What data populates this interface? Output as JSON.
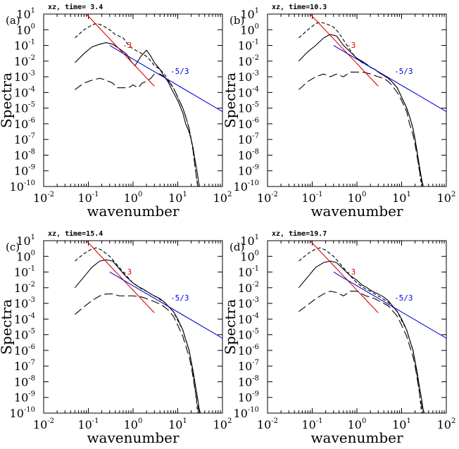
{
  "chart_data": [
    {
      "type": "line",
      "panel_label": "(a)",
      "title": "xz, time= 3.4",
      "xlabel": "wavenumber",
      "ylabel": "Spectra",
      "x_scale": "log",
      "y_scale": "log",
      "xlim": [
        0.01,
        100
      ],
      "ylim": [
        1e-10,
        10
      ],
      "x_tick_labels": [
        "10^-2",
        "10^-1",
        "10^0",
        "10^1",
        "10^2"
      ],
      "y_tick_labels": [
        "10^-10",
        "10^-9",
        "10^-8",
        "10^-7",
        "10^-6",
        "10^-5",
        "10^-4",
        "10^-3",
        "10^-2",
        "10^-1",
        "10^0",
        "10^1"
      ],
      "series": [
        {
          "style": "solid",
          "x": [
            0.05,
            0.08,
            0.12,
            0.18,
            0.25,
            0.35,
            0.5,
            0.7,
            0.9,
            1.1,
            1.5,
            2.0,
            2.5,
            3.0,
            4.0,
            5.0,
            6.0,
            8.0,
            10,
            13,
            15,
            18,
            20,
            22,
            25,
            28,
            30
          ],
          "y": [
            0.008,
            0.03,
            0.08,
            0.12,
            0.15,
            0.12,
            0.06,
            0.03,
            0.01,
            0.005,
            0.02,
            0.05,
            0.02,
            0.008,
            0.003,
            0.001,
            0.0005,
            0.0001,
            3e-05,
            5e-06,
            1e-06,
            3e-07,
            1e-07,
            3e-08,
            3e-09,
            5e-10,
            1e-10
          ]
        },
        {
          "style": "dashed",
          "x": [
            0.05,
            0.08,
            0.12,
            0.15,
            0.2,
            0.3,
            0.4,
            0.6,
            0.8,
            1.0,
            1.3,
            1.6,
            2.0,
            2.5,
            3.0,
            4.0,
            5.0,
            6.0,
            8.0,
            10,
            13,
            15,
            18,
            20,
            22,
            25,
            28,
            30
          ],
          "y": [
            0.3,
            1.0,
            2.0,
            2.5,
            2.0,
            1.0,
            0.5,
            0.3,
            0.1,
            0.06,
            0.04,
            0.03,
            0.02,
            0.01,
            0.005,
            0.003,
            0.0015,
            0.0007,
            0.0002,
            5e-05,
            1e-05,
            3e-06,
            5e-07,
            1e-07,
            2e-08,
            1e-09,
            1e-10,
            1e-10
          ]
        },
        {
          "style": "longdash",
          "x": [
            0.05,
            0.08,
            0.12,
            0.18,
            0.25,
            0.35,
            0.45,
            0.6,
            0.8,
            1.0,
            1.3,
            1.6,
            2.0,
            2.5,
            3.0,
            4.0,
            5.0,
            6.0,
            8.0,
            10,
            13,
            15,
            18,
            20,
            22,
            25,
            28
          ],
          "y": [
            0.00015,
            0.0004,
            0.0006,
            0.0008,
            0.0006,
            0.0004,
            0.0002,
            0.0002,
            0.0002,
            0.0003,
            0.0002,
            0.0004,
            0.0005,
            0.0008,
            0.0015,
            0.0015,
            0.001,
            0.0006,
            0.0002,
            5e-05,
            1e-05,
            3e-06,
            5e-07,
            1e-07,
            2e-08,
            1e-09,
            1e-10
          ]
        }
      ],
      "reference_lines": [
        {
          "label": "-3",
          "color": "#dd0000",
          "x": [
            0.09,
            3.0
          ],
          "y": [
            10,
            0.00025
          ]
        },
        {
          "label": "-5/3",
          "color": "#0000dd",
          "x": [
            0.3,
            100
          ],
          "y": [
            0.1,
            6e-06
          ]
        }
      ]
    },
    {
      "type": "line",
      "panel_label": "(b)",
      "title": "xz, time=10.3",
      "xlabel": "wavenumber",
      "ylabel": "Spectra",
      "x_scale": "log",
      "y_scale": "log",
      "xlim": [
        0.01,
        100
      ],
      "ylim": [
        1e-10,
        10
      ],
      "x_tick_labels": [
        "10^-2",
        "10^-1",
        "10^0",
        "10^1",
        "10^2"
      ],
      "y_tick_labels": [
        "10^-10",
        "10^-9",
        "10^-8",
        "10^-7",
        "10^-6",
        "10^-5",
        "10^-4",
        "10^-3",
        "10^-2",
        "10^-1",
        "10^0",
        "10^1"
      ],
      "series": [
        {
          "style": "solid",
          "x": [
            0.05,
            0.08,
            0.12,
            0.18,
            0.25,
            0.35,
            0.5,
            0.7,
            1.0,
            1.3,
            1.7,
            2.0,
            2.5,
            3.0,
            4.0,
            5.0,
            6.0,
            8.0,
            10,
            13,
            15,
            18,
            20,
            22,
            25,
            28,
            30
          ],
          "y": [
            0.01,
            0.04,
            0.1,
            0.3,
            0.5,
            0.4,
            0.1,
            0.04,
            0.015,
            0.01,
            0.006,
            0.004,
            0.003,
            0.002,
            0.0012,
            0.0008,
            0.0005,
            0.0002,
            5e-05,
            1e-05,
            3e-06,
            5e-07,
            1e-07,
            2e-08,
            2e-09,
            3e-10,
            1e-10
          ]
        },
        {
          "style": "dashed",
          "x": [
            0.05,
            0.08,
            0.12,
            0.15,
            0.2,
            0.3,
            0.4,
            0.6,
            0.8,
            1.0,
            1.3,
            1.6,
            2.0,
            2.5,
            3.0,
            4.0,
            5.0,
            6.0,
            8.0,
            10,
            13,
            15,
            18,
            20,
            22,
            25,
            28,
            30
          ],
          "y": [
            0.3,
            1.0,
            2.5,
            3.0,
            2.5,
            1.5,
            0.6,
            0.1,
            0.03,
            0.015,
            0.008,
            0.006,
            0.004,
            0.003,
            0.002,
            0.0012,
            0.0008,
            0.0005,
            0.0002,
            5e-05,
            1e-05,
            3e-06,
            5e-07,
            1e-07,
            2e-08,
            1e-09,
            1e-10,
            1e-10
          ]
        },
        {
          "style": "longdash",
          "x": [
            0.05,
            0.08,
            0.12,
            0.18,
            0.25,
            0.35,
            0.5,
            0.7,
            1.0,
            1.3,
            1.6,
            2.0,
            2.5,
            3.0,
            4.0,
            5.0,
            6.0,
            8.0,
            10,
            13,
            15,
            18,
            20,
            22,
            25,
            28,
            30
          ],
          "y": [
            0.00015,
            0.0005,
            0.001,
            0.0015,
            0.001,
            0.0015,
            0.001,
            0.002,
            0.002,
            0.002,
            0.0018,
            0.0015,
            0.0012,
            0.001,
            0.0008,
            0.0005,
            0.0003,
            0.0001,
            3e-05,
            6e-06,
            1e-06,
            2e-07,
            5e-08,
            1e-08,
            1e-09,
            2e-10,
            1e-10
          ]
        }
      ],
      "reference_lines": [
        {
          "label": "-3",
          "color": "#dd0000",
          "x": [
            0.09,
            3.0
          ],
          "y": [
            10,
            0.00025
          ]
        },
        {
          "label": "-5/3",
          "color": "#0000dd",
          "x": [
            0.3,
            100
          ],
          "y": [
            0.1,
            6e-06
          ]
        }
      ]
    },
    {
      "type": "line",
      "panel_label": "(c)",
      "title": "xz, time=15.4",
      "xlabel": "wavenumber",
      "ylabel": "Spectra",
      "x_scale": "log",
      "y_scale": "log",
      "xlim": [
        0.01,
        100
      ],
      "ylim": [
        1e-10,
        10
      ],
      "x_tick_labels": [
        "10^-2",
        "10^-1",
        "10^0",
        "10^1",
        "10^2"
      ],
      "y_tick_labels": [
        "10^-10",
        "10^-9",
        "10^-8",
        "10^-7",
        "10^-6",
        "10^-5",
        "10^-4",
        "10^-3",
        "10^-2",
        "10^-1",
        "10^0",
        "10^1"
      ],
      "series": [
        {
          "style": "solid",
          "x": [
            0.05,
            0.08,
            0.12,
            0.18,
            0.25,
            0.35,
            0.5,
            0.7,
            1.0,
            1.3,
            1.7,
            2.0,
            2.5,
            3.0,
            4.0,
            5.0,
            6.0,
            8.0,
            10,
            13,
            15,
            18,
            20,
            22,
            25,
            28,
            30,
            32
          ],
          "y": [
            0.01,
            0.05,
            0.2,
            0.5,
            0.6,
            0.5,
            0.15,
            0.05,
            0.02,
            0.012,
            0.008,
            0.006,
            0.004,
            0.003,
            0.002,
            0.0012,
            0.0007,
            0.0003,
            0.0001,
            2e-05,
            5e-06,
            1e-06,
            2e-07,
            5e-08,
            5e-09,
            8e-10,
            2e-10,
            1e-10
          ]
        },
        {
          "style": "dashed",
          "x": [
            0.05,
            0.08,
            0.12,
            0.15,
            0.2,
            0.3,
            0.4,
            0.6,
            0.8,
            1.0,
            1.3,
            1.6,
            2.0,
            2.5,
            3.0,
            4.0,
            5.0,
            6.0,
            8.0,
            10,
            13,
            15,
            18,
            20,
            22,
            25,
            28
          ],
          "y": [
            0.5,
            1.5,
            3.0,
            3.5,
            2.5,
            1.0,
            0.4,
            0.1,
            0.04,
            0.02,
            0.012,
            0.008,
            0.006,
            0.004,
            0.003,
            0.0018,
            0.0012,
            0.0007,
            0.0003,
            8e-05,
            2e-05,
            5e-06,
            1e-06,
            2e-07,
            3e-08,
            2e-09,
            1e-10
          ]
        },
        {
          "style": "longdash",
          "x": [
            0.05,
            0.08,
            0.12,
            0.18,
            0.25,
            0.35,
            0.5,
            0.7,
            1.0,
            1.3,
            1.6,
            2.0,
            2.5,
            3.0,
            4.0,
            5.0,
            6.0,
            8.0,
            10,
            13,
            15,
            18,
            20,
            22,
            25,
            28,
            30
          ],
          "y": [
            0.0002,
            0.0006,
            0.0015,
            0.003,
            0.004,
            0.004,
            0.003,
            0.003,
            0.003,
            0.0028,
            0.0025,
            0.002,
            0.0016,
            0.0013,
            0.0009,
            0.0006,
            0.0004,
            0.00015,
            4e-05,
            8e-06,
            2e-06,
            4e-07,
            1e-07,
            2e-08,
            2e-09,
            3e-10,
            1e-10
          ]
        }
      ],
      "reference_lines": [
        {
          "label": "-3",
          "color": "#dd0000",
          "x": [
            0.09,
            3.0
          ],
          "y": [
            10,
            0.00025
          ]
        },
        {
          "label": "-5/3",
          "color": "#0000dd",
          "x": [
            0.3,
            100
          ],
          "y": [
            0.1,
            6e-06
          ]
        }
      ]
    },
    {
      "type": "line",
      "panel_label": "(d)",
      "title": "xz, time=19.7",
      "xlabel": "wavenumber",
      "ylabel": "Spectra",
      "x_scale": "log",
      "y_scale": "log",
      "xlim": [
        0.01,
        100
      ],
      "ylim": [
        1e-10,
        10
      ],
      "x_tick_labels": [
        "10^-2",
        "10^-1",
        "10^0",
        "10^1",
        "10^2"
      ],
      "y_tick_labels": [
        "10^-10",
        "10^-9",
        "10^-8",
        "10^-7",
        "10^-6",
        "10^-5",
        "10^-4",
        "10^-3",
        "10^-2",
        "10^-1",
        "10^0",
        "10^1"
      ],
      "series": [
        {
          "style": "solid",
          "x": [
            0.05,
            0.08,
            0.12,
            0.18,
            0.25,
            0.35,
            0.5,
            0.7,
            1.0,
            1.3,
            1.7,
            2.0,
            2.5,
            3.0,
            4.0,
            5.0,
            6.0,
            8.0,
            10,
            13,
            15,
            18,
            20,
            22,
            25,
            28,
            30,
            32
          ],
          "y": [
            0.01,
            0.05,
            0.2,
            0.4,
            0.5,
            0.4,
            0.15,
            0.06,
            0.03,
            0.015,
            0.01,
            0.007,
            0.005,
            0.004,
            0.0025,
            0.0015,
            0.0008,
            0.0003,
            0.0001,
            2e-05,
            5e-06,
            1e-06,
            2e-07,
            5e-08,
            5e-09,
            8e-10,
            2e-10,
            1e-10
          ]
        },
        {
          "style": "dashed",
          "x": [
            0.05,
            0.08,
            0.12,
            0.15,
            0.2,
            0.3,
            0.4,
            0.6,
            0.8,
            1.0,
            1.3,
            1.6,
            2.0,
            2.5,
            3.0,
            4.0,
            5.0,
            6.0,
            8.0,
            10,
            13,
            15,
            18,
            20,
            22,
            25,
            28
          ],
          "y": [
            0.5,
            1.5,
            3.0,
            3.5,
            2.5,
            1.0,
            0.4,
            0.1,
            0.04,
            0.02,
            0.012,
            0.008,
            0.006,
            0.004,
            0.003,
            0.0018,
            0.0012,
            0.0007,
            0.0003,
            8e-05,
            2e-05,
            5e-06,
            1e-06,
            2e-07,
            3e-08,
            2e-09,
            1e-10
          ]
        },
        {
          "style": "longdash",
          "x": [
            0.05,
            0.08,
            0.12,
            0.18,
            0.25,
            0.35,
            0.5,
            0.7,
            1.0,
            1.3,
            1.6,
            2.0,
            2.5,
            3.0,
            4.0,
            5.0,
            6.0,
            8.0,
            10,
            13,
            15,
            18,
            20,
            22,
            25,
            28,
            30
          ],
          "y": [
            0.0003,
            0.0008,
            0.002,
            0.004,
            0.006,
            0.005,
            0.003,
            0.006,
            0.006,
            0.004,
            0.003,
            0.0025,
            0.002,
            0.0015,
            0.001,
            0.0007,
            0.0004,
            0.00015,
            4e-05,
            8e-06,
            2e-06,
            4e-07,
            1e-07,
            2e-08,
            2e-09,
            3e-10,
            1e-10
          ]
        }
      ],
      "reference_lines": [
        {
          "label": "-3",
          "color": "#dd0000",
          "x": [
            0.09,
            3.0
          ],
          "y": [
            10,
            0.00025
          ]
        },
        {
          "label": "-5/3",
          "color": "#0000dd",
          "x": [
            0.3,
            100
          ],
          "y": [
            0.1,
            6e-06
          ]
        }
      ]
    }
  ]
}
